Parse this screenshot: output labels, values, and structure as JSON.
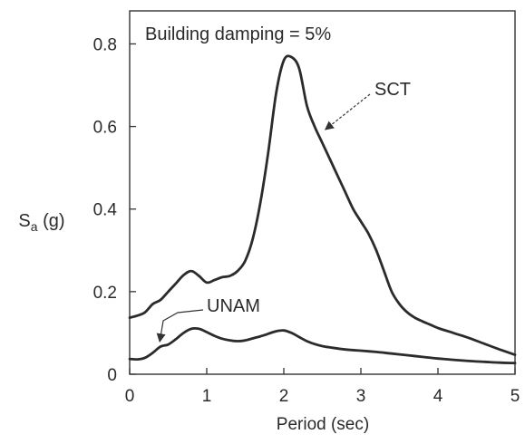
{
  "chart_data": {
    "type": "line",
    "title": "Building damping = 5%",
    "xlabel": "Period (sec)",
    "ylabel": "Sa (g)",
    "ylabel_parts": {
      "main": "S",
      "sub": "a",
      "unit": " (g)"
    },
    "xlim": [
      0,
      5
    ],
    "ylim": [
      0,
      0.88
    ],
    "xticks": [
      0,
      1,
      2,
      3,
      4,
      5
    ],
    "yticks": [
      0,
      0.2,
      0.4,
      0.6,
      0.8
    ],
    "grid": false,
    "series": [
      {
        "name": "SCT",
        "x": [
          0.0,
          0.1,
          0.2,
          0.3,
          0.4,
          0.5,
          0.6,
          0.7,
          0.8,
          0.9,
          1.0,
          1.1,
          1.2,
          1.3,
          1.4,
          1.5,
          1.6,
          1.7,
          1.8,
          1.9,
          2.0,
          2.1,
          2.2,
          2.3,
          2.4,
          2.5,
          2.6,
          2.7,
          2.8,
          2.9,
          3.0,
          3.1,
          3.2,
          3.3,
          3.4,
          3.5,
          3.6,
          3.7,
          3.8,
          3.9,
          4.0,
          4.2,
          4.4,
          4.6,
          4.8,
          5.0
        ],
        "y": [
          0.137,
          0.142,
          0.15,
          0.17,
          0.18,
          0.2,
          0.22,
          0.24,
          0.25,
          0.238,
          0.222,
          0.228,
          0.235,
          0.238,
          0.25,
          0.275,
          0.33,
          0.42,
          0.54,
          0.68,
          0.76,
          0.768,
          0.74,
          0.65,
          0.6,
          0.56,
          0.52,
          0.48,
          0.44,
          0.4,
          0.37,
          0.34,
          0.3,
          0.25,
          0.2,
          0.17,
          0.15,
          0.137,
          0.128,
          0.12,
          0.112,
          0.1,
          0.088,
          0.074,
          0.06,
          0.047
        ]
      },
      {
        "name": "UNAM",
        "x": [
          0.0,
          0.1,
          0.2,
          0.3,
          0.4,
          0.5,
          0.6,
          0.7,
          0.8,
          0.9,
          1.0,
          1.1,
          1.2,
          1.3,
          1.4,
          1.5,
          1.6,
          1.7,
          1.8,
          1.9,
          2.0,
          2.1,
          2.2,
          2.3,
          2.4,
          2.5,
          2.6,
          2.8,
          3.0,
          3.2,
          3.4,
          3.6,
          3.8,
          4.0,
          4.2,
          4.4,
          4.6,
          4.8,
          5.0
        ],
        "y": [
          0.037,
          0.036,
          0.04,
          0.052,
          0.067,
          0.072,
          0.085,
          0.1,
          0.11,
          0.11,
          0.102,
          0.093,
          0.086,
          0.082,
          0.08,
          0.082,
          0.087,
          0.092,
          0.098,
          0.104,
          0.106,
          0.1,
          0.09,
          0.08,
          0.073,
          0.068,
          0.065,
          0.06,
          0.057,
          0.054,
          0.05,
          0.046,
          0.042,
          0.038,
          0.035,
          0.032,
          0.03,
          0.028,
          0.027
        ]
      }
    ],
    "annotations": [
      {
        "text": "SCT",
        "target_series": "SCT",
        "target_x": 2.5,
        "target_y": 0.585
      },
      {
        "text": "UNAM",
        "target_series": "UNAM",
        "target_x": 0.38,
        "target_y": 0.072
      }
    ]
  }
}
